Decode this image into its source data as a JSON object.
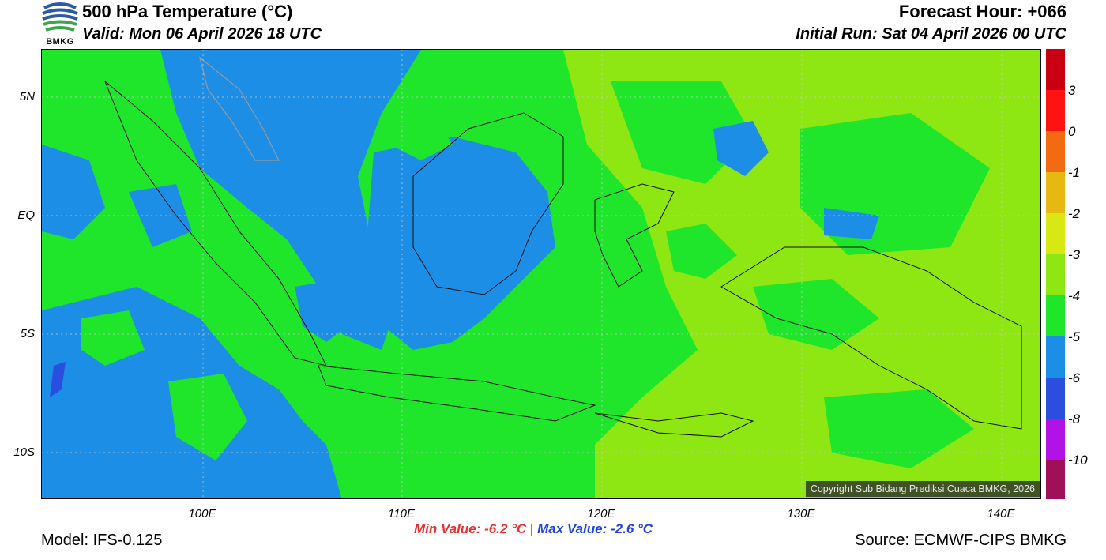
{
  "header": {
    "title": "500 hPa Temperature (°C)",
    "valid": "Valid: Mon 06 April 2026 18 UTC",
    "forecast_hour": "Forecast Hour: +066",
    "initial_run": "Initial Run: Sat 04 April 2026 00 UTC",
    "logo_text": "BMKG"
  },
  "map": {
    "lat_labels": [
      "5N",
      "EQ",
      "5S",
      "10S"
    ],
    "lon_labels": [
      "100E",
      "110E",
      "120E",
      "130E",
      "140E"
    ],
    "copyright": "Copyright Sub Bidang Prediksi Cuaca BMKG, 2026",
    "dominant_colors": {
      "-6 to -5": "#1c8ee6",
      "-5 to -4": "#1fe62a",
      "-4 to -3": "#8ee612",
      "-3 to -2": "#dde80f"
    }
  },
  "colorbar": {
    "labels": [
      "3",
      "0",
      "-1",
      "-2",
      "-3",
      "-4",
      "-5",
      "-6",
      "-8",
      "-10"
    ],
    "colors": [
      "#c80012",
      "#ff1212",
      "#f26a12",
      "#e8b812",
      "#d8e812",
      "#8ee612",
      "#1fe62a",
      "#1c8ee6",
      "#2a4ee0",
      "#b012e8",
      "#a0105a"
    ]
  },
  "footer": {
    "min_value": "Min Value: -6.2 °C",
    "separator": "|",
    "max_value": "Max Value: -2.6 °C",
    "model": "Model: IFS-0.125",
    "source": "Source: ECMWF-CIPS BMKG"
  }
}
